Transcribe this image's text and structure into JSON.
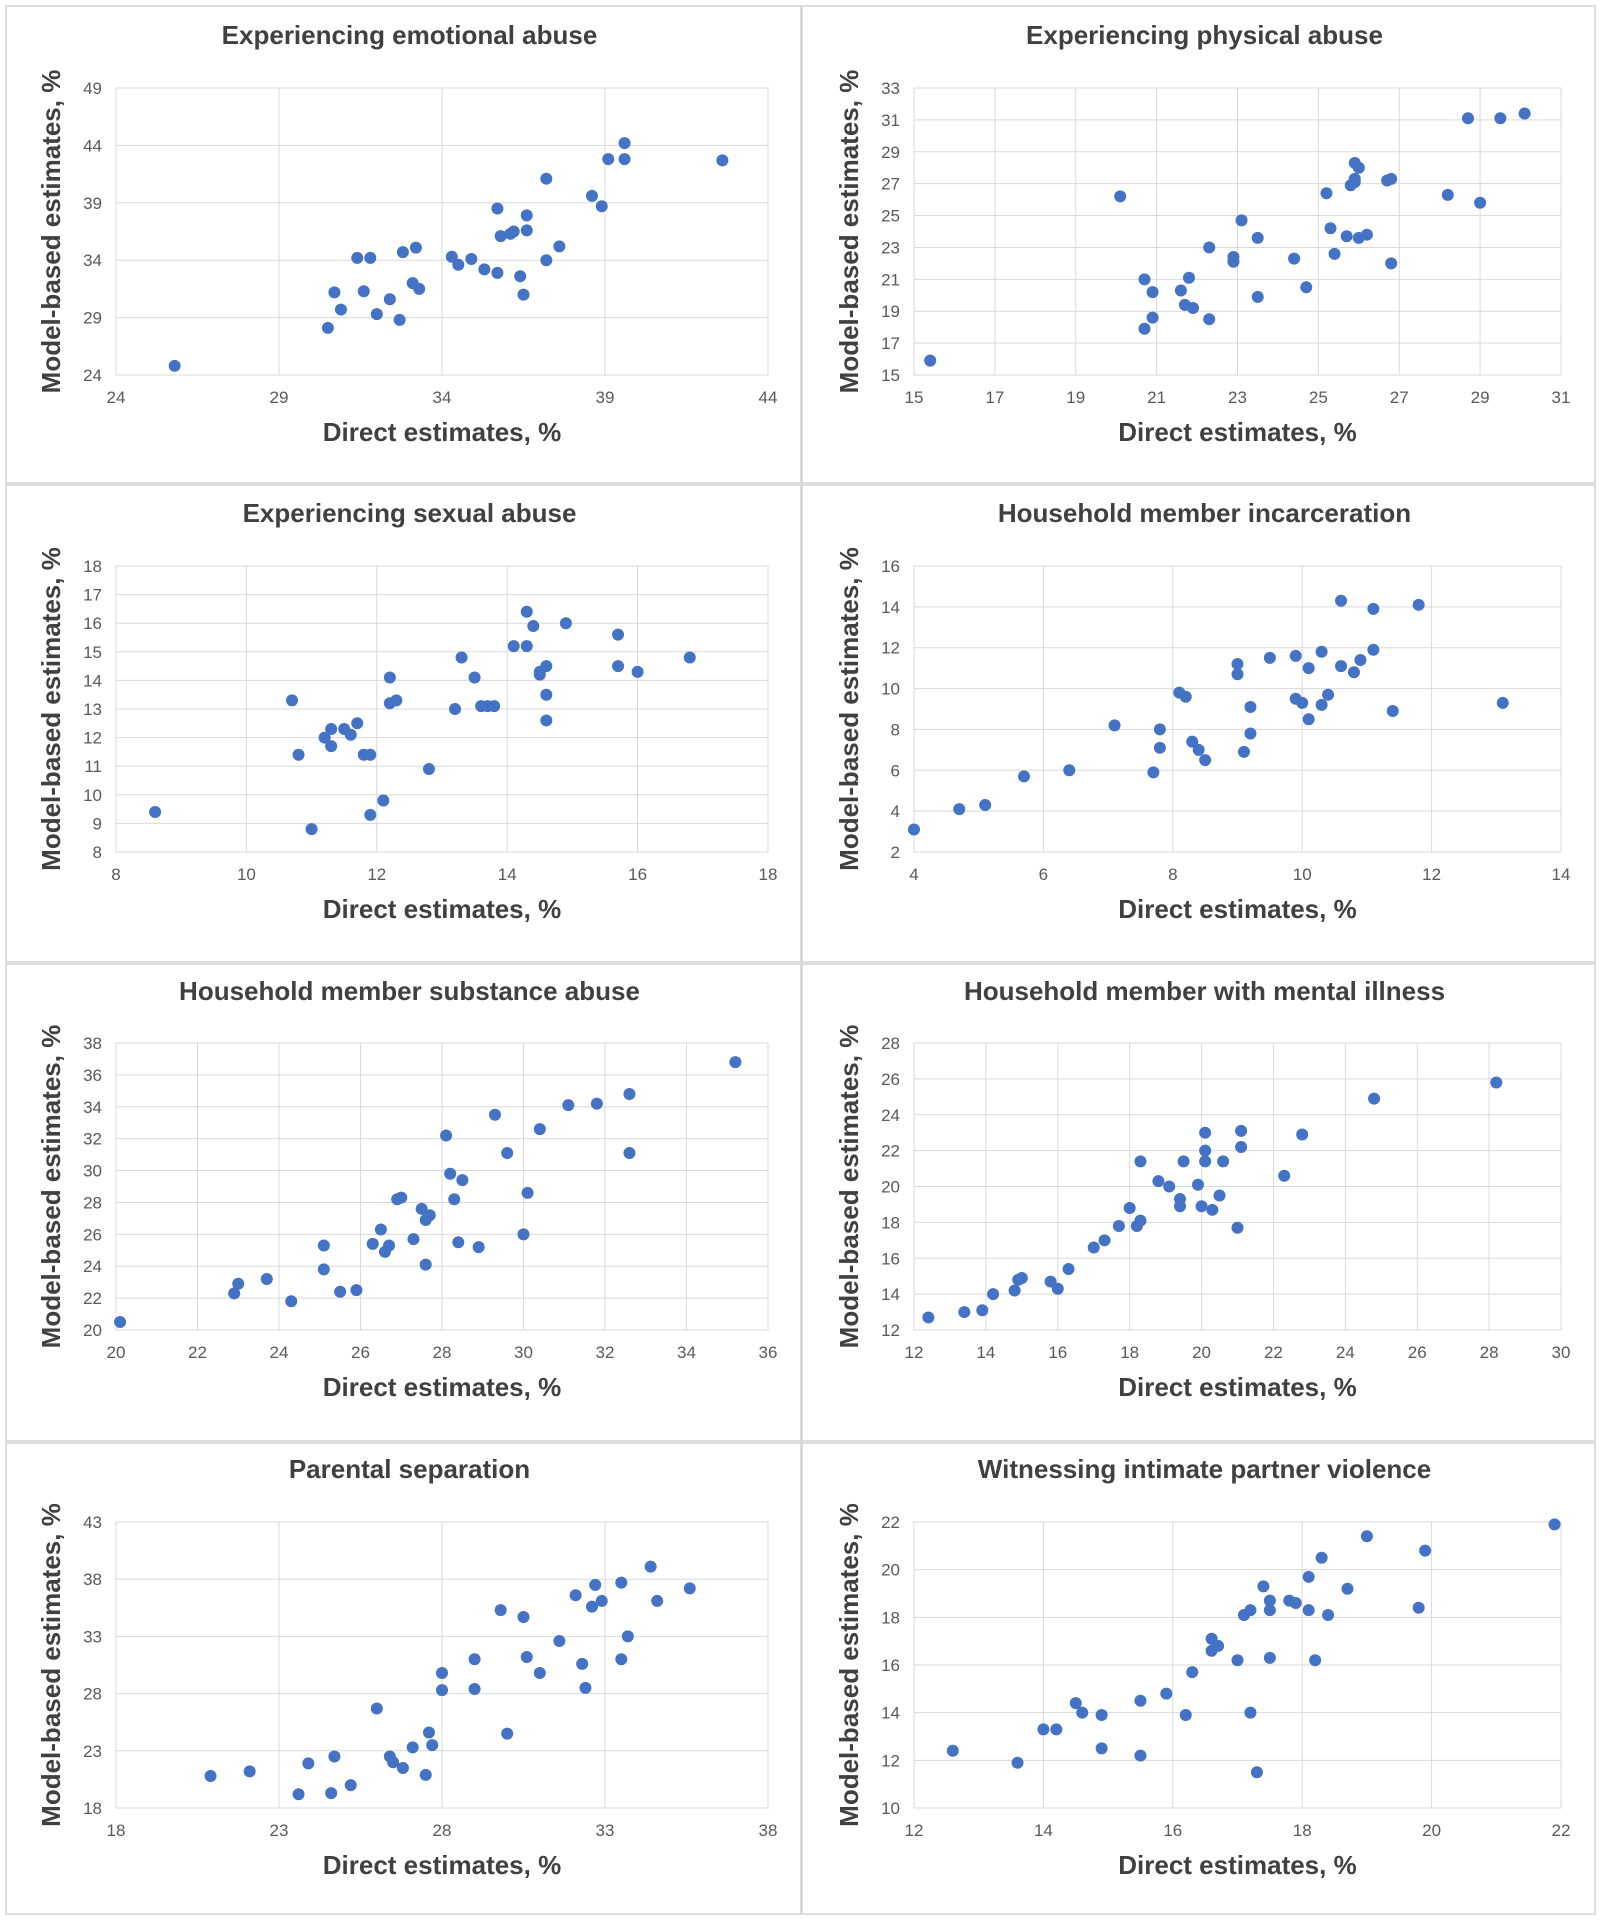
{
  "figure": {
    "point_color": "#4472c4",
    "panel_border_color": "#d4d4d4",
    "grid_color": "#d9d9d9"
  },
  "chart_data": [
    {
      "type": "scatter",
      "title": "Experiencing emotional abuse",
      "xlabel": "Direct estimates, %",
      "ylabel": "Model-based estimates, %",
      "xlim": [
        24,
        44
      ],
      "ylim": [
        24,
        49
      ],
      "xticks": [
        24,
        29,
        34,
        39,
        44
      ],
      "yticks": [
        24,
        29,
        34,
        39,
        44,
        49
      ],
      "x": [
        25.8,
        30.5,
        30.7,
        30.9,
        31.4,
        31.6,
        31.8,
        32.0,
        32.4,
        32.7,
        32.8,
        33.1,
        33.2,
        33.3,
        34.3,
        34.5,
        34.9,
        35.3,
        35.7,
        35.7,
        35.8,
        36.1,
        36.2,
        36.4,
        36.5,
        36.6,
        36.6,
        37.2,
        37.2,
        37.6,
        38.6,
        38.9,
        39.1,
        39.6,
        39.6,
        42.6
      ],
      "y": [
        24.8,
        28.1,
        31.2,
        29.7,
        34.2,
        31.3,
        34.2,
        29.3,
        30.6,
        28.8,
        34.7,
        32.0,
        35.1,
        31.5,
        34.3,
        33.6,
        34.1,
        33.2,
        38.5,
        32.9,
        36.1,
        36.3,
        36.5,
        32.6,
        31.0,
        36.6,
        37.9,
        41.1,
        34.0,
        35.2,
        39.6,
        38.7,
        42.8,
        44.2,
        42.8,
        42.7
      ]
    },
    {
      "type": "scatter",
      "title": "Experiencing physical abuse",
      "xlabel": "Direct estimates, %",
      "ylabel": "Model-based estimates, %",
      "xlim": [
        15,
        31
      ],
      "ylim": [
        15,
        33
      ],
      "xticks": [
        15,
        17,
        19,
        21,
        23,
        25,
        27,
        29,
        31
      ],
      "yticks": [
        15,
        17,
        19,
        21,
        23,
        25,
        27,
        29,
        31,
        33
      ],
      "x": [
        15.4,
        20.1,
        20.7,
        20.7,
        20.9,
        20.9,
        21.6,
        21.7,
        21.8,
        21.9,
        22.3,
        22.3,
        22.9,
        22.9,
        23.1,
        23.5,
        23.5,
        24.4,
        24.7,
        25.2,
        25.3,
        25.4,
        25.7,
        25.8,
        25.9,
        25.9,
        25.9,
        26.0,
        26.0,
        26.2,
        26.7,
        26.8,
        26.8,
        28.2,
        28.7,
        29.0,
        29.5,
        30.1
      ],
      "y": [
        15.9,
        26.2,
        21.0,
        17.9,
        18.6,
        20.2,
        20.3,
        19.4,
        21.1,
        19.2,
        23.0,
        18.5,
        22.1,
        22.4,
        24.7,
        23.6,
        19.9,
        22.3,
        20.5,
        26.4,
        24.2,
        22.6,
        23.7,
        26.9,
        27.3,
        28.3,
        27.1,
        28.0,
        23.6,
        23.8,
        27.2,
        27.3,
        22.0,
        26.3,
        31.1,
        25.8,
        31.1,
        31.4
      ]
    },
    {
      "type": "scatter",
      "title": "Experiencing sexual abuse",
      "xlabel": "Direct estimates, %",
      "ylabel": "Model-based estimates, %",
      "xlim": [
        8,
        18
      ],
      "ylim": [
        8,
        18
      ],
      "xticks": [
        8,
        10,
        12,
        14,
        16,
        18
      ],
      "yticks": [
        8,
        9,
        10,
        11,
        12,
        13,
        14,
        15,
        16,
        17,
        18
      ],
      "x": [
        8.6,
        10.7,
        10.8,
        11.0,
        11.2,
        11.3,
        11.3,
        11.5,
        11.6,
        11.7,
        11.8,
        11.9,
        11.9,
        12.1,
        12.2,
        12.2,
        12.3,
        12.8,
        13.2,
        13.3,
        13.5,
        13.6,
        13.7,
        13.8,
        14.1,
        14.3,
        14.3,
        14.4,
        14.5,
        14.5,
        14.6,
        14.6,
        14.6,
        14.9,
        15.7,
        15.7,
        16.0,
        16.8
      ],
      "y": [
        9.4,
        13.3,
        11.4,
        8.8,
        12.0,
        12.3,
        11.7,
        12.3,
        12.1,
        12.5,
        11.4,
        9.3,
        11.4,
        9.8,
        13.2,
        14.1,
        13.3,
        10.9,
        13.0,
        14.8,
        14.1,
        13.1,
        13.1,
        13.1,
        15.2,
        15.2,
        16.4,
        15.9,
        14.3,
        14.2,
        14.5,
        13.5,
        12.6,
        16.0,
        15.6,
        14.5,
        14.3,
        14.8
      ]
    },
    {
      "type": "scatter",
      "title": "Household member incarceration",
      "xlabel": "Direct estimates, %",
      "ylabel": "Model-based estimates, %",
      "xlim": [
        4,
        14
      ],
      "ylim": [
        2,
        16
      ],
      "xticks": [
        4,
        6,
        8,
        10,
        12,
        14
      ],
      "yticks": [
        2,
        4,
        6,
        8,
        10,
        12,
        14,
        16
      ],
      "x": [
        4.0,
        4.7,
        5.1,
        5.7,
        6.4,
        7.1,
        7.7,
        7.8,
        7.8,
        8.1,
        8.2,
        8.3,
        8.4,
        8.5,
        9.0,
        9.0,
        9.1,
        9.2,
        9.2,
        9.5,
        9.9,
        9.9,
        10.0,
        10.1,
        10.1,
        10.3,
        10.3,
        10.4,
        10.6,
        10.6,
        10.8,
        10.9,
        11.1,
        11.1,
        11.4,
        11.8,
        13.1
      ],
      "y": [
        3.1,
        4.1,
        4.3,
        5.7,
        6.0,
        8.2,
        5.9,
        8.0,
        7.1,
        9.8,
        9.6,
        7.4,
        7.0,
        6.5,
        11.2,
        10.7,
        6.9,
        9.1,
        7.8,
        11.5,
        11.6,
        9.5,
        9.3,
        8.5,
        11.0,
        11.8,
        9.2,
        9.7,
        14.3,
        11.1,
        10.8,
        11.4,
        13.9,
        11.9,
        8.9,
        14.1,
        9.3
      ]
    },
    {
      "type": "scatter",
      "title": "Household member substance abuse",
      "xlabel": "Direct estimates, %",
      "ylabel": "Model-based estimates, %",
      "xlim": [
        20,
        36
      ],
      "ylim": [
        20,
        38
      ],
      "xticks": [
        20,
        22,
        24,
        26,
        28,
        30,
        32,
        34,
        36
      ],
      "yticks": [
        20,
        22,
        24,
        26,
        28,
        30,
        32,
        34,
        36,
        38
      ],
      "x": [
        20.1,
        22.9,
        23.0,
        23.7,
        24.3,
        25.1,
        25.1,
        25.5,
        25.9,
        26.3,
        26.5,
        26.6,
        26.7,
        26.9,
        27.0,
        27.3,
        27.5,
        27.6,
        27.6,
        27.7,
        28.1,
        28.2,
        28.3,
        28.4,
        28.5,
        28.9,
        29.3,
        29.6,
        30.0,
        30.1,
        30.4,
        31.1,
        31.8,
        32.6,
        32.6,
        35.2
      ],
      "y": [
        20.5,
        22.3,
        22.9,
        23.2,
        21.8,
        25.3,
        23.8,
        22.4,
        22.5,
        25.4,
        26.3,
        24.9,
        25.3,
        28.2,
        28.3,
        25.7,
        27.6,
        24.1,
        26.9,
        27.2,
        32.2,
        29.8,
        28.2,
        25.5,
        29.4,
        25.2,
        33.5,
        31.1,
        26.0,
        28.6,
        32.6,
        34.1,
        34.2,
        34.8,
        31.1,
        36.8
      ]
    },
    {
      "type": "scatter",
      "title": "Household member with mental illness",
      "xlabel": "Direct estimates, %",
      "ylabel": "Model-based estimates, %",
      "xlim": [
        12,
        30
      ],
      "ylim": [
        12,
        28
      ],
      "xticks": [
        12,
        14,
        16,
        18,
        20,
        22,
        24,
        26,
        28,
        30
      ],
      "yticks": [
        12,
        14,
        16,
        18,
        20,
        22,
        24,
        26,
        28
      ],
      "x": [
        12.4,
        13.4,
        13.9,
        14.2,
        14.8,
        14.9,
        15.0,
        15.8,
        16.0,
        16.3,
        17.0,
        17.3,
        17.7,
        18.0,
        18.2,
        18.3,
        18.3,
        18.8,
        19.1,
        19.4,
        19.4,
        19.5,
        19.9,
        20.0,
        20.1,
        20.1,
        20.1,
        20.3,
        20.5,
        20.6,
        21.0,
        21.1,
        21.1,
        22.3,
        22.8,
        24.8,
        28.2
      ],
      "y": [
        12.7,
        13.0,
        13.1,
        14.0,
        14.2,
        14.8,
        14.9,
        14.7,
        14.3,
        15.4,
        16.6,
        17.0,
        17.8,
        18.8,
        17.8,
        18.1,
        21.4,
        20.3,
        20.0,
        18.9,
        19.3,
        21.4,
        20.1,
        18.9,
        21.4,
        23.0,
        22.0,
        18.7,
        19.5,
        21.4,
        17.7,
        22.2,
        23.1,
        20.6,
        22.9,
        24.9,
        25.8
      ]
    },
    {
      "type": "scatter",
      "title": "Parental separation",
      "xlabel": "Direct estimates, %",
      "ylabel": "Model-based estimates, %",
      "xlim": [
        18,
        38
      ],
      "ylim": [
        18,
        43
      ],
      "xticks": [
        18,
        23,
        28,
        33,
        38
      ],
      "yticks": [
        18,
        23,
        28,
        33,
        38,
        43
      ],
      "x": [
        20.9,
        22.1,
        23.6,
        23.9,
        24.6,
        24.7,
        25.2,
        26.0,
        26.4,
        26.5,
        26.8,
        27.1,
        27.5,
        27.6,
        27.7,
        28.0,
        28.0,
        29.0,
        29.0,
        29.8,
        30.0,
        30.5,
        30.6,
        31.0,
        31.6,
        32.1,
        32.3,
        32.4,
        32.6,
        32.7,
        32.9,
        33.5,
        33.5,
        33.7,
        34.4,
        34.6,
        35.6
      ],
      "y": [
        20.8,
        21.2,
        19.2,
        21.9,
        19.3,
        22.5,
        20.0,
        26.7,
        22.5,
        22.0,
        21.5,
        23.3,
        20.9,
        24.6,
        23.5,
        28.3,
        29.8,
        28.4,
        31.0,
        35.3,
        24.5,
        34.7,
        31.2,
        29.8,
        32.6,
        36.6,
        30.6,
        28.5,
        35.6,
        37.5,
        36.1,
        37.7,
        31.0,
        33.0,
        39.1,
        36.1,
        37.2
      ]
    },
    {
      "type": "scatter",
      "title": "Witnessing intimate partner violence",
      "xlabel": "Direct estimates, %",
      "ylabel": "Model-based estimates, %",
      "xlim": [
        12,
        22
      ],
      "ylim": [
        10,
        22
      ],
      "xticks": [
        12,
        14,
        16,
        18,
        20,
        22
      ],
      "yticks": [
        10,
        12,
        14,
        16,
        18,
        20,
        22
      ],
      "x": [
        12.6,
        13.6,
        14.0,
        14.2,
        14.5,
        14.6,
        14.9,
        14.9,
        15.5,
        15.5,
        15.9,
        16.2,
        16.3,
        16.6,
        16.6,
        16.7,
        17.0,
        17.1,
        17.2,
        17.2,
        17.3,
        17.4,
        17.5,
        17.5,
        17.5,
        17.8,
        17.9,
        18.1,
        18.1,
        18.2,
        18.3,
        18.4,
        18.7,
        19.0,
        19.8,
        19.9,
        21.9
      ],
      "y": [
        12.4,
        11.9,
        13.3,
        13.3,
        14.4,
        14.0,
        13.9,
        12.5,
        14.5,
        12.2,
        14.8,
        13.9,
        15.7,
        17.1,
        16.6,
        16.8,
        16.2,
        18.1,
        18.3,
        14.0,
        11.5,
        19.3,
        18.7,
        18.3,
        16.3,
        18.7,
        18.6,
        19.7,
        18.3,
        16.2,
        20.5,
        18.1,
        19.2,
        21.4,
        18.4,
        20.8,
        21.9
      ]
    }
  ]
}
